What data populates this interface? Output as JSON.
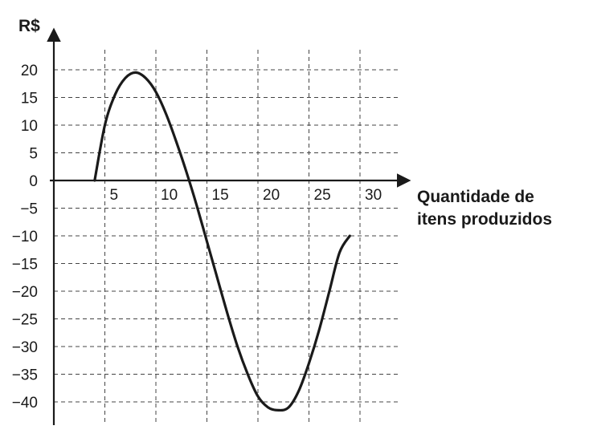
{
  "chart_data": {
    "type": "line",
    "ylabel": "R$",
    "xlabel_lines": [
      "Quantidade de",
      "itens produzidos"
    ],
    "x_ticks": [
      5,
      10,
      15,
      20,
      25,
      30
    ],
    "x_tick_labels": [
      "5",
      "10",
      "15",
      "20",
      "25",
      "30"
    ],
    "y_ticks": [
      20,
      15,
      10,
      5,
      0,
      -5,
      -10,
      -15,
      -20,
      -25,
      -30,
      -35,
      -40
    ],
    "y_tick_labels": [
      "20",
      "15",
      "10",
      "5",
      "0",
      "−5",
      "−10",
      "−15",
      "−20",
      "−25",
      "−30",
      "−35",
      "−40"
    ],
    "xlim": [
      0,
      34.5
    ],
    "ylim": [
      -43,
      26
    ],
    "grid": true,
    "series": [
      {
        "x": [
          4,
          5,
          6,
          7,
          8,
          9,
          10,
          11,
          12,
          13,
          14,
          15,
          16,
          17,
          18,
          19,
          20,
          21,
          22,
          23,
          24,
          25,
          26,
          27,
          28,
          29
        ],
        "y": [
          0,
          10,
          15.5,
          18.5,
          19.5,
          18.5,
          16,
          12,
          7,
          1.5,
          -4.5,
          -11,
          -17.5,
          -24,
          -30,
          -35,
          -39,
          -41,
          -41.5,
          -41,
          -38,
          -33,
          -27,
          -20,
          -13,
          -10
        ]
      }
    ]
  }
}
